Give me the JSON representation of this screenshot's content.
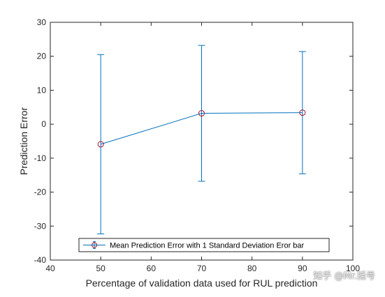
{
  "chart_data": {
    "type": "line",
    "title": "",
    "xlabel": "Percentage of validation data used for RUL prediction",
    "ylabel": "Prediction Error",
    "xlim": [
      40,
      100
    ],
    "ylim": [
      -40,
      30
    ],
    "xticks": [
      40,
      50,
      60,
      70,
      80,
      90,
      100
    ],
    "yticks": [
      -40,
      -30,
      -20,
      -10,
      0,
      10,
      20,
      30
    ],
    "grid": false,
    "legend_position": "bottom",
    "series": [
      {
        "name": "Mean Prediction Error with 1 Standard Deviation Eror bar",
        "x": [
          50,
          70,
          90
        ],
        "y": [
          -5.9,
          3.2,
          3.4
        ],
        "error_lower": [
          -32.3,
          -16.8,
          -14.6
        ],
        "error_upper": [
          20.5,
          23.2,
          21.4
        ],
        "line_color": "#0072BD",
        "marker": "circle",
        "marker_color": "#A2142F"
      }
    ]
  },
  "watermark": "知乎 @Mr.括号"
}
